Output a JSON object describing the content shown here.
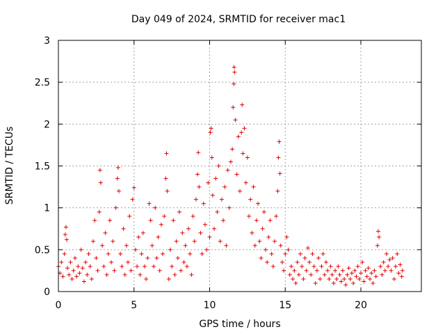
{
  "chart_data": {
    "type": "scatter",
    "title": "Day 049 of 2024, SRMTID for receiver mac1",
    "xlabel": "GPS time / hours",
    "ylabel": "SRMTID / TECUs",
    "xlim": [
      0,
      24
    ],
    "ylim": [
      0,
      3
    ],
    "xticks": [
      0,
      5,
      10,
      15,
      20
    ],
    "xtick_labels": [
      "0",
      "5",
      "10",
      "15",
      "20"
    ],
    "yticks": [
      0,
      0.5,
      1,
      1.5,
      2,
      2.5,
      3
    ],
    "ytick_labels": [
      "0",
      "0.5",
      "1",
      "1.5",
      "2",
      "2.5",
      "3"
    ],
    "grid": true,
    "marker": "+",
    "color": "#e00000",
    "series": [
      {
        "name": "SRMTID",
        "points": [
          [
            0.0,
            0.3
          ],
          [
            0.1,
            0.22
          ],
          [
            0.2,
            0.35
          ],
          [
            0.3,
            0.18
          ],
          [
            0.4,
            0.45
          ],
          [
            0.45,
            0.68
          ],
          [
            0.5,
            0.77
          ],
          [
            0.55,
            0.62
          ],
          [
            0.6,
            0.28
          ],
          [
            0.7,
            0.2
          ],
          [
            0.8,
            0.35
          ],
          [
            0.9,
            0.15
          ],
          [
            1.0,
            0.25
          ],
          [
            1.1,
            0.4
          ],
          [
            1.2,
            0.18
          ],
          [
            1.3,
            0.3
          ],
          [
            1.4,
            0.22
          ],
          [
            1.5,
            0.5
          ],
          [
            1.6,
            0.28
          ],
          [
            1.7,
            0.12
          ],
          [
            1.8,
            0.35
          ],
          [
            1.9,
            0.2
          ],
          [
            2.0,
            0.45
          ],
          [
            2.1,
            0.3
          ],
          [
            2.2,
            0.15
          ],
          [
            2.3,
            0.6
          ],
          [
            2.4,
            0.85
          ],
          [
            2.5,
            0.4
          ],
          [
            2.6,
            0.25
          ],
          [
            2.7,
            0.95
          ],
          [
            2.75,
            1.45
          ],
          [
            2.8,
            1.3
          ],
          [
            2.9,
            0.55
          ],
          [
            3.0,
            0.3
          ],
          [
            3.1,
            0.7
          ],
          [
            3.2,
            0.2
          ],
          [
            3.3,
            0.45
          ],
          [
            3.4,
            0.85
          ],
          [
            3.5,
            0.35
          ],
          [
            3.6,
            0.6
          ],
          [
            3.7,
            0.25
          ],
          [
            3.8,
            1.0
          ],
          [
            3.9,
            1.35
          ],
          [
            3.95,
            1.48
          ],
          [
            4.0,
            1.2
          ],
          [
            4.1,
            0.45
          ],
          [
            4.2,
            0.3
          ],
          [
            4.3,
            0.75
          ],
          [
            4.4,
            0.2
          ],
          [
            4.5,
            0.55
          ],
          [
            4.6,
            0.35
          ],
          [
            4.7,
            0.9
          ],
          [
            4.8,
            0.25
          ],
          [
            4.9,
            1.1
          ],
          [
            5.0,
            1.24
          ],
          [
            5.1,
            0.5
          ],
          [
            5.2,
            0.3
          ],
          [
            5.3,
            0.65
          ],
          [
            5.4,
            0.2
          ],
          [
            5.5,
            0.45
          ],
          [
            5.6,
            0.7
          ],
          [
            5.7,
            0.3
          ],
          [
            5.8,
            0.15
          ],
          [
            5.9,
            0.4
          ],
          [
            6.0,
            1.05
          ],
          [
            6.1,
            0.85
          ],
          [
            6.2,
            0.55
          ],
          [
            6.3,
            0.3
          ],
          [
            6.4,
            1.0
          ],
          [
            6.5,
            0.4
          ],
          [
            6.6,
            0.65
          ],
          [
            6.7,
            0.25
          ],
          [
            6.8,
            0.8
          ],
          [
            6.9,
            0.45
          ],
          [
            7.0,
            0.9
          ],
          [
            7.1,
            1.35
          ],
          [
            7.15,
            1.65
          ],
          [
            7.2,
            1.2
          ],
          [
            7.3,
            0.15
          ],
          [
            7.4,
            0.5
          ],
          [
            7.5,
            0.3
          ],
          [
            7.6,
            0.85
          ],
          [
            7.7,
            0.2
          ],
          [
            7.8,
            0.6
          ],
          [
            7.9,
            0.4
          ],
          [
            8.0,
            0.95
          ],
          [
            8.1,
            0.25
          ],
          [
            8.2,
            0.7
          ],
          [
            8.3,
            0.35
          ],
          [
            8.4,
            0.55
          ],
          [
            8.5,
            0.3
          ],
          [
            8.6,
            0.75
          ],
          [
            8.7,
            0.45
          ],
          [
            8.8,
            0.2
          ],
          [
            8.9,
            0.9
          ],
          [
            9.0,
            0.6
          ],
          [
            9.1,
            1.1
          ],
          [
            9.2,
            1.4
          ],
          [
            9.25,
            1.66
          ],
          [
            9.3,
            1.25
          ],
          [
            9.4,
            0.7
          ],
          [
            9.5,
            0.45
          ],
          [
            9.6,
            1.05
          ],
          [
            9.7,
            0.8
          ],
          [
            9.8,
            0.5
          ],
          [
            9.9,
            1.3
          ],
          [
            10.0,
            0.65
          ],
          [
            10.05,
            1.9
          ],
          [
            10.1,
            1.95
          ],
          [
            10.15,
            1.6
          ],
          [
            10.2,
            1.15
          ],
          [
            10.3,
            0.75
          ],
          [
            10.4,
            1.35
          ],
          [
            10.5,
            0.95
          ],
          [
            10.6,
            1.5
          ],
          [
            10.7,
            0.6
          ],
          [
            10.8,
            1.1
          ],
          [
            10.9,
            0.85
          ],
          [
            11.0,
            1.25
          ],
          [
            11.1,
            0.55
          ],
          [
            11.2,
            1.45
          ],
          [
            11.3,
            1.0
          ],
          [
            11.4,
            1.55
          ],
          [
            11.5,
            1.7
          ],
          [
            11.55,
            2.2
          ],
          [
            11.6,
            2.48
          ],
          [
            11.62,
            2.68
          ],
          [
            11.65,
            2.62
          ],
          [
            11.7,
            2.05
          ],
          [
            11.8,
            1.4
          ],
          [
            11.9,
            1.85
          ],
          [
            12.0,
            1.2
          ],
          [
            12.1,
            1.9
          ],
          [
            12.15,
            2.23
          ],
          [
            12.2,
            1.65
          ],
          [
            12.3,
            1.95
          ],
          [
            12.4,
            1.3
          ],
          [
            12.5,
            1.6
          ],
          [
            12.6,
            0.9
          ],
          [
            12.7,
            1.1
          ],
          [
            12.8,
            0.7
          ],
          [
            12.9,
            1.25
          ],
          [
            13.0,
            0.55
          ],
          [
            13.1,
            0.85
          ],
          [
            13.2,
            1.05
          ],
          [
            13.3,
            0.6
          ],
          [
            13.4,
            0.4
          ],
          [
            13.5,
            0.75
          ],
          [
            13.6,
            0.95
          ],
          [
            13.7,
            0.5
          ],
          [
            13.8,
            0.35
          ],
          [
            13.9,
            0.65
          ],
          [
            14.0,
            0.85
          ],
          [
            14.1,
            0.45
          ],
          [
            14.2,
            0.3
          ],
          [
            14.3,
            0.6
          ],
          [
            14.4,
            0.9
          ],
          [
            14.5,
            1.2
          ],
          [
            14.55,
            1.6
          ],
          [
            14.6,
            1.79
          ],
          [
            14.65,
            1.41
          ],
          [
            14.7,
            0.55
          ],
          [
            14.8,
            0.35
          ],
          [
            14.9,
            0.25
          ],
          [
            15.0,
            0.45
          ],
          [
            15.1,
            0.65
          ],
          [
            15.2,
            0.5
          ],
          [
            15.3,
            0.2
          ],
          [
            15.4,
            0.3
          ],
          [
            15.5,
            0.15
          ],
          [
            15.6,
            0.25
          ],
          [
            15.7,
            0.1
          ],
          [
            15.8,
            0.35
          ],
          [
            15.9,
            0.2
          ],
          [
            16.0,
            0.45
          ],
          [
            16.1,
            0.3
          ],
          [
            16.2,
            0.15
          ],
          [
            16.3,
            0.4
          ],
          [
            16.4,
            0.25
          ],
          [
            16.5,
            0.52
          ],
          [
            16.6,
            0.35
          ],
          [
            16.7,
            0.2
          ],
          [
            16.8,
            0.45
          ],
          [
            16.9,
            0.3
          ],
          [
            17.0,
            0.1
          ],
          [
            17.1,
            0.25
          ],
          [
            17.2,
            0.4
          ],
          [
            17.3,
            0.15
          ],
          [
            17.4,
            0.3
          ],
          [
            17.5,
            0.45
          ],
          [
            17.6,
            0.2
          ],
          [
            17.7,
            0.35
          ],
          [
            17.8,
            0.25
          ],
          [
            17.9,
            0.15
          ],
          [
            18.0,
            0.3
          ],
          [
            18.1,
            0.2
          ],
          [
            18.2,
            0.1
          ],
          [
            18.3,
            0.25
          ],
          [
            18.4,
            0.15
          ],
          [
            18.5,
            0.3
          ],
          [
            18.6,
            0.2
          ],
          [
            18.7,
            0.12
          ],
          [
            18.8,
            0.25
          ],
          [
            18.9,
            0.15
          ],
          [
            19.0,
            0.08
          ],
          [
            19.1,
            0.2
          ],
          [
            19.2,
            0.28
          ],
          [
            19.3,
            0.15
          ],
          [
            19.4,
            0.22
          ],
          [
            19.5,
            0.1
          ],
          [
            19.6,
            0.25
          ],
          [
            19.7,
            0.18
          ],
          [
            19.8,
            0.3
          ],
          [
            19.9,
            0.15
          ],
          [
            20.0,
            0.22
          ],
          [
            20.1,
            0.35
          ],
          [
            20.2,
            0.12
          ],
          [
            20.3,
            0.25
          ],
          [
            20.4,
            0.18
          ],
          [
            20.5,
            0.28
          ],
          [
            20.6,
            0.15
          ],
          [
            20.7,
            0.22
          ],
          [
            20.8,
            0.1
          ],
          [
            20.9,
            0.25
          ],
          [
            21.0,
            0.18
          ],
          [
            21.1,
            0.55
          ],
          [
            21.15,
            0.72
          ],
          [
            21.2,
            0.65
          ],
          [
            21.3,
            0.3
          ],
          [
            21.4,
            0.2
          ],
          [
            21.5,
            0.35
          ],
          [
            21.6,
            0.25
          ],
          [
            21.7,
            0.45
          ],
          [
            21.8,
            0.3
          ],
          [
            21.9,
            0.38
          ],
          [
            22.0,
            0.25
          ],
          [
            22.1,
            0.4
          ],
          [
            22.2,
            0.15
          ],
          [
            22.3,
            0.3
          ],
          [
            22.4,
            0.45
          ],
          [
            22.5,
            0.22
          ],
          [
            22.6,
            0.32
          ],
          [
            22.7,
            0.18
          ],
          [
            22.75,
            0.25
          ]
        ]
      }
    ]
  }
}
